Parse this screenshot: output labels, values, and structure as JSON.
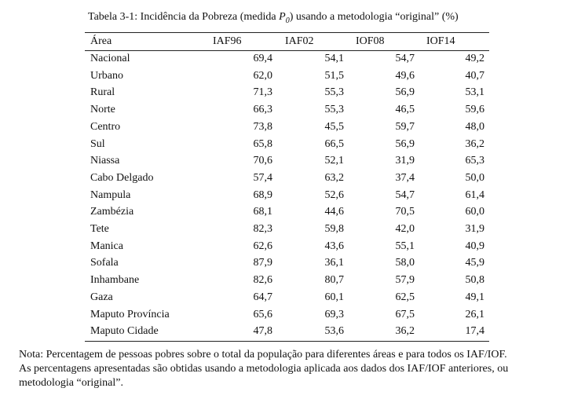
{
  "title": {
    "prefix": "Tabela 3-1: Incidência da Pobreza (medida ",
    "symbol": "P",
    "subscript": "0",
    "suffix": ") usando a metodologia “original” (%)"
  },
  "table": {
    "header": [
      "Área",
      "IAF96",
      "IAF02",
      "IOF08",
      "IOF14"
    ],
    "rows": [
      [
        "Nacional",
        "69,4",
        "54,1",
        "54,7",
        "49,2"
      ],
      [
        "Urbano",
        "62,0",
        "51,5",
        "49,6",
        "40,7"
      ],
      [
        "Rural",
        "71,3",
        "55,3",
        "56,9",
        "53,1"
      ],
      [
        "Norte",
        "66,3",
        "55,3",
        "46,5",
        "59,6"
      ],
      [
        "Centro",
        "73,8",
        "45,5",
        "59,7",
        "48,0"
      ],
      [
        "Sul",
        "65,8",
        "66,5",
        "56,9",
        "36,2"
      ],
      [
        "Niassa",
        "70,6",
        "52,1",
        "31,9",
        "65,3"
      ],
      [
        "Cabo Delgado",
        "57,4",
        "63,2",
        "37,4",
        "50,0"
      ],
      [
        "Nampula",
        "68,9",
        "52,6",
        "54,7",
        "61,4"
      ],
      [
        "Zambézia",
        "68,1",
        "44,6",
        "70,5",
        "60,0"
      ],
      [
        "Tete",
        "82,3",
        "59,8",
        "42,0",
        "31,9"
      ],
      [
        "Manica",
        "62,6",
        "43,6",
        "55,1",
        "40,9"
      ],
      [
        "Sofala",
        "87,9",
        "36,1",
        "58,0",
        "45,9"
      ],
      [
        "Inhambane",
        "82,6",
        "80,7",
        "57,9",
        "50,8"
      ],
      [
        "Gaza",
        "64,7",
        "60,1",
        "62,5",
        "49,1"
      ],
      [
        "Maputo Província",
        "65,6",
        "69,3",
        "67,5",
        "26,1"
      ],
      [
        "Maputo Cidade",
        "47,8",
        "53,6",
        "36,2",
        "17,4"
      ]
    ]
  },
  "note": [
    "Nota: Percentagem de pessoas pobres sobre o total da população para diferentes áreas e para todos os IAF/IOF.",
    "As percentagens apresentadas são obtidas usando a metodologia aplicada aos dados dos IAF/IOF anteriores, ou",
    "metodologia “original”."
  ]
}
